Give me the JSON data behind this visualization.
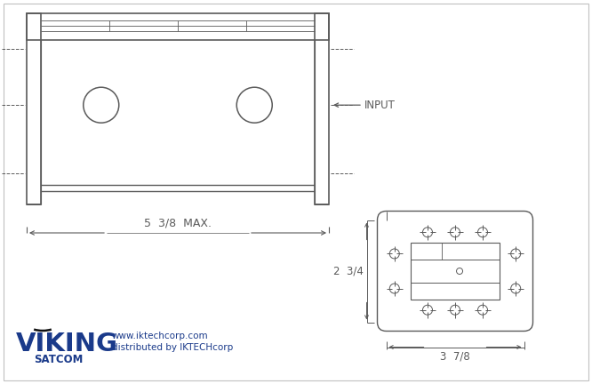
{
  "bg_color": "#ffffff",
  "line_color": "#5a5a5a",
  "viking_blue": "#1a3a8a",
  "fig_width": 6.66,
  "fig_height": 4.32,
  "dim_width_label": "5  3/8  MAX.",
  "dim_height_label": "2  3/4",
  "dim_bottom_label": "3  7/8",
  "input_label": "INPUT",
  "website": "www.iktechcorp.com",
  "distributed": "distributed by IKTECHcorp",
  "viking_text": "VIKING",
  "satcom_text": "SATCOM",
  "border_color": "#c0c0c0"
}
